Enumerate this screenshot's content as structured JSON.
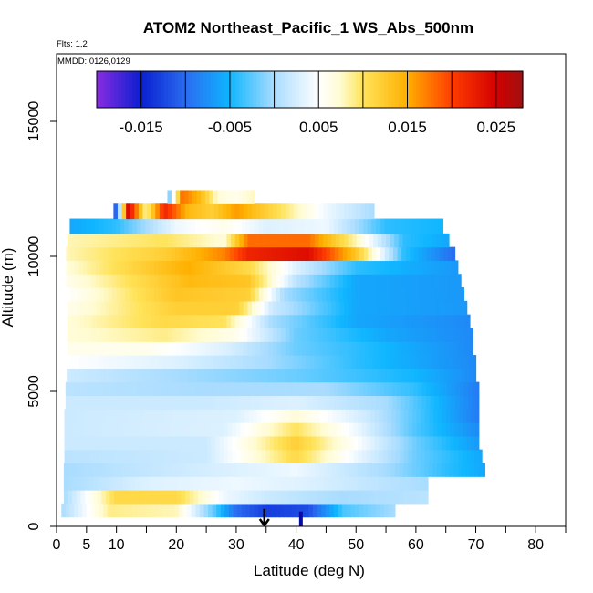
{
  "chart_data": {
    "type": "heatmap",
    "title": "ATOM2 Northeast_Pacific_1 WS_Abs_500nm",
    "flights_note": "Flts: 1,2",
    "date_note": "MMDD: 0126,0129",
    "xlabel": "Latitude (deg N)",
    "ylabel": "Altitude (m)",
    "xlim": [
      0,
      85
    ],
    "ylim": [
      0,
      17500
    ],
    "x_ticks": [
      0,
      5,
      10,
      20,
      30,
      40,
      50,
      60,
      70,
      80
    ],
    "x_minor_ticks": [
      15,
      25,
      35,
      45,
      55,
      65,
      75,
      85
    ],
    "y_ticks": [
      0,
      5000,
      10000,
      15000
    ],
    "colorbar": {
      "range": [
        -0.02,
        0.028
      ],
      "tick_values": [
        -0.015,
        -0.005,
        0.005,
        0.015,
        0.025
      ],
      "tick_labels": [
        "-0.015",
        "-0.005",
        "0.005",
        "0.015",
        "0.025"
      ],
      "stops": [
        {
          "v": -0.02,
          "c": "#8a2be2"
        },
        {
          "v": -0.015,
          "c": "#0a1fd0"
        },
        {
          "v": -0.01,
          "c": "#2a6cf0"
        },
        {
          "v": -0.005,
          "c": "#0fb6ff"
        },
        {
          "v": 0.0,
          "c": "#a9dcff"
        },
        {
          "v": 0.005,
          "c": "#ffffff"
        },
        {
          "v": 0.0075,
          "c": "#fffbd0"
        },
        {
          "v": 0.01,
          "c": "#ffe35a"
        },
        {
          "v": 0.015,
          "c": "#ffb000"
        },
        {
          "v": 0.02,
          "c": "#ff3d00"
        },
        {
          "v": 0.025,
          "c": "#d40000"
        },
        {
          "v": 0.028,
          "c": "#a01010"
        }
      ]
    },
    "profile_rows": [
      {
        "alt": 600,
        "x0": 0.8,
        "x1": 56.5,
        "ctrl": [
          [
            0.8,
            0.0
          ],
          [
            9,
            0.009
          ],
          [
            20,
            0.008
          ],
          [
            26,
            -0.002
          ],
          [
            30,
            -0.01
          ],
          [
            35,
            -0.013
          ],
          [
            42,
            -0.012
          ],
          [
            48,
            -0.003
          ],
          [
            56.5,
            0.0
          ]
        ]
      },
      {
        "alt": 1100,
        "x0": 1.2,
        "x1": 62,
        "ctrl": [
          [
            1.2,
            0.0
          ],
          [
            10,
            0.011
          ],
          [
            20,
            0.011
          ],
          [
            28,
            0.004
          ],
          [
            35,
            0.002
          ],
          [
            48,
            0.0
          ],
          [
            62,
            0.001
          ]
        ]
      },
      {
        "alt": 1600,
        "x0": 1.2,
        "x1": 62,
        "ctrl": [
          [
            1.2,
            0.0
          ],
          [
            15,
            0.003
          ],
          [
            30,
            0.004
          ],
          [
            42,
            0.003
          ],
          [
            55,
            0.001
          ],
          [
            62,
            0.0
          ]
        ]
      },
      {
        "alt": 2100,
        "x0": 1.2,
        "x1": 71.5,
        "ctrl": [
          [
            1.2,
            0.0
          ],
          [
            20,
            0.002
          ],
          [
            40,
            0.004
          ],
          [
            55,
            0.0
          ],
          [
            65,
            -0.004
          ],
          [
            71.5,
            -0.006
          ]
        ]
      },
      {
        "alt": 2600,
        "x0": 1.3,
        "x1": 71,
        "ctrl": [
          [
            1.3,
            0.001
          ],
          [
            25,
            0.002
          ],
          [
            40,
            0.011
          ],
          [
            50,
            0.004
          ],
          [
            60,
            -0.002
          ],
          [
            71,
            -0.006
          ]
        ]
      },
      {
        "alt": 3100,
        "x0": 1.3,
        "x1": 70.5,
        "ctrl": [
          [
            1.3,
            0.002
          ],
          [
            25,
            0.002
          ],
          [
            40,
            0.012
          ],
          [
            50,
            0.005
          ],
          [
            60,
            -0.002
          ],
          [
            70.5,
            -0.007
          ]
        ]
      },
      {
        "alt": 3600,
        "x0": 1.3,
        "x1": 70.5,
        "ctrl": [
          [
            1.3,
            0.002
          ],
          [
            28,
            0.003
          ],
          [
            40,
            0.01
          ],
          [
            50,
            0.004
          ],
          [
            60,
            -0.003
          ],
          [
            70.5,
            -0.008
          ]
        ]
      },
      {
        "alt": 4100,
        "x0": 1.3,
        "x1": 70.5,
        "ctrl": [
          [
            1.3,
            0.002
          ],
          [
            30,
            0.003
          ],
          [
            40,
            0.007
          ],
          [
            52,
            0.002
          ],
          [
            62,
            -0.004
          ],
          [
            70.5,
            -0.009
          ]
        ]
      },
      {
        "alt": 4600,
        "x0": 1.5,
        "x1": 70.5,
        "ctrl": [
          [
            1.5,
            0.002
          ],
          [
            25,
            0.002
          ],
          [
            40,
            0.003
          ],
          [
            55,
            0.0
          ],
          [
            70.5,
            -0.009
          ]
        ]
      },
      {
        "alt": 5100,
        "x0": 1.5,
        "x1": 70.5,
        "ctrl": [
          [
            1.5,
            0.001
          ],
          [
            25,
            0.0
          ],
          [
            45,
            0.0
          ],
          [
            60,
            -0.004
          ],
          [
            70.5,
            -0.009
          ]
        ]
      },
      {
        "alt": 5600,
        "x0": 1.7,
        "x1": 70,
        "ctrl": [
          [
            1.7,
            0.002
          ],
          [
            20,
            0.0
          ],
          [
            40,
            -0.002
          ],
          [
            60,
            -0.005
          ],
          [
            70,
            -0.008
          ]
        ]
      },
      {
        "alt": 6100,
        "x0": 1.7,
        "x1": 70,
        "ctrl": [
          [
            1.7,
            0.005
          ],
          [
            20,
            0.003
          ],
          [
            35,
            0.0
          ],
          [
            50,
            -0.004
          ],
          [
            70,
            -0.008
          ]
        ]
      },
      {
        "alt": 6600,
        "x0": 1.8,
        "x1": 69.5,
        "ctrl": [
          [
            1.8,
            0.006
          ],
          [
            15,
            0.006
          ],
          [
            28,
            0.003
          ],
          [
            40,
            -0.002
          ],
          [
            55,
            -0.005
          ],
          [
            69.5,
            -0.008
          ]
        ]
      },
      {
        "alt": 7100,
        "x0": 1.8,
        "x1": 69.5,
        "ctrl": [
          [
            1.8,
            0.007
          ],
          [
            18,
            0.009
          ],
          [
            30,
            0.006
          ],
          [
            40,
            -0.002
          ],
          [
            55,
            -0.006
          ],
          [
            69.5,
            -0.008
          ]
        ]
      },
      {
        "alt": 7600,
        "x0": 1.8,
        "x1": 69,
        "ctrl": [
          [
            1.8,
            0.007
          ],
          [
            18,
            0.011
          ],
          [
            28,
            0.01
          ],
          [
            36,
            0.0
          ],
          [
            50,
            -0.006
          ],
          [
            69,
            -0.008
          ]
        ]
      },
      {
        "alt": 8100,
        "x0": 1.8,
        "x1": 68.5,
        "ctrl": [
          [
            1.8,
            0.006
          ],
          [
            20,
            0.012
          ],
          [
            30,
            0.012
          ],
          [
            36,
            0.002
          ],
          [
            50,
            -0.006
          ],
          [
            68.5,
            -0.007
          ]
        ]
      },
      {
        "alt": 8600,
        "x0": 1.6,
        "x1": 68,
        "ctrl": [
          [
            1.6,
            0.005
          ],
          [
            20,
            0.013
          ],
          [
            32,
            0.012
          ],
          [
            38,
            0.0
          ],
          [
            50,
            -0.006
          ],
          [
            68,
            -0.007
          ]
        ]
      },
      {
        "alt": 9100,
        "x0": 1.6,
        "x1": 67.5,
        "ctrl": [
          [
            1.6,
            0.006
          ],
          [
            22,
            0.014
          ],
          [
            32,
            0.013
          ],
          [
            40,
            0.001
          ],
          [
            50,
            -0.006
          ],
          [
            67.5,
            -0.007
          ]
        ]
      },
      {
        "alt": 9600,
        "x0": 1.6,
        "x1": 67,
        "ctrl": [
          [
            1.6,
            0.007
          ],
          [
            22,
            0.015
          ],
          [
            32,
            0.011
          ],
          [
            40,
            0.003
          ],
          [
            50,
            -0.004
          ],
          [
            67,
            -0.007
          ]
        ]
      },
      {
        "alt": 10100,
        "x0": 1.6,
        "x1": 66.5,
        "ctrl": [
          [
            1.6,
            0.008
          ],
          [
            18,
            0.012
          ],
          [
            28,
            0.017
          ],
          [
            32,
            0.022
          ],
          [
            42,
            0.024
          ],
          [
            50,
            0.013
          ],
          [
            58,
            -0.004
          ],
          [
            66.5,
            -0.01
          ]
        ]
      },
      {
        "alt": 10600,
        "x0": 1.8,
        "x1": 65.5,
        "ctrl": [
          [
            1.8,
            0.008
          ],
          [
            18,
            0.01
          ],
          [
            28,
            0.007
          ],
          [
            32,
            0.018
          ],
          [
            42,
            0.018
          ],
          [
            50,
            0.008
          ],
          [
            58,
            -0.004
          ],
          [
            65.5,
            -0.006
          ]
        ]
      },
      {
        "alt": 11100,
        "x0": 2.2,
        "x1": 64.5,
        "ctrl": [
          [
            2.2,
            -0.006
          ],
          [
            10,
            -0.004
          ],
          [
            20,
            0.004
          ],
          [
            28,
            0.006
          ],
          [
            35,
            0.003
          ],
          [
            45,
            0.004
          ],
          [
            55,
            -0.004
          ],
          [
            64.5,
            -0.005
          ]
        ]
      },
      {
        "alt": 11700,
        "x0": 9.5,
        "x1": 53,
        "ctrl": [
          [
            9.5,
            -0.016
          ],
          [
            12,
            0.025
          ],
          [
            15,
            0.008
          ],
          [
            18,
            0.022
          ],
          [
            22,
            0.014
          ],
          [
            26,
            0.012
          ],
          [
            30,
            0.016
          ],
          [
            35,
            0.012
          ],
          [
            40,
            0.008
          ],
          [
            45,
            0.004
          ],
          [
            53,
            0.0
          ]
        ]
      },
      {
        "alt": 12200,
        "x0": 18.5,
        "x1": 33,
        "ctrl": [
          [
            18.5,
            -0.004
          ],
          [
            21,
            0.018
          ],
          [
            24,
            0.014
          ],
          [
            27,
            0.007
          ],
          [
            30,
            0.006
          ],
          [
            33,
            0.008
          ]
        ]
      }
    ],
    "arrow_annotation": {
      "x": 34.7,
      "y_top": 650,
      "y_bottom": 0
    },
    "blue_tick": {
      "x": 40.8,
      "y_top": 550,
      "y_bottom": 0
    }
  }
}
